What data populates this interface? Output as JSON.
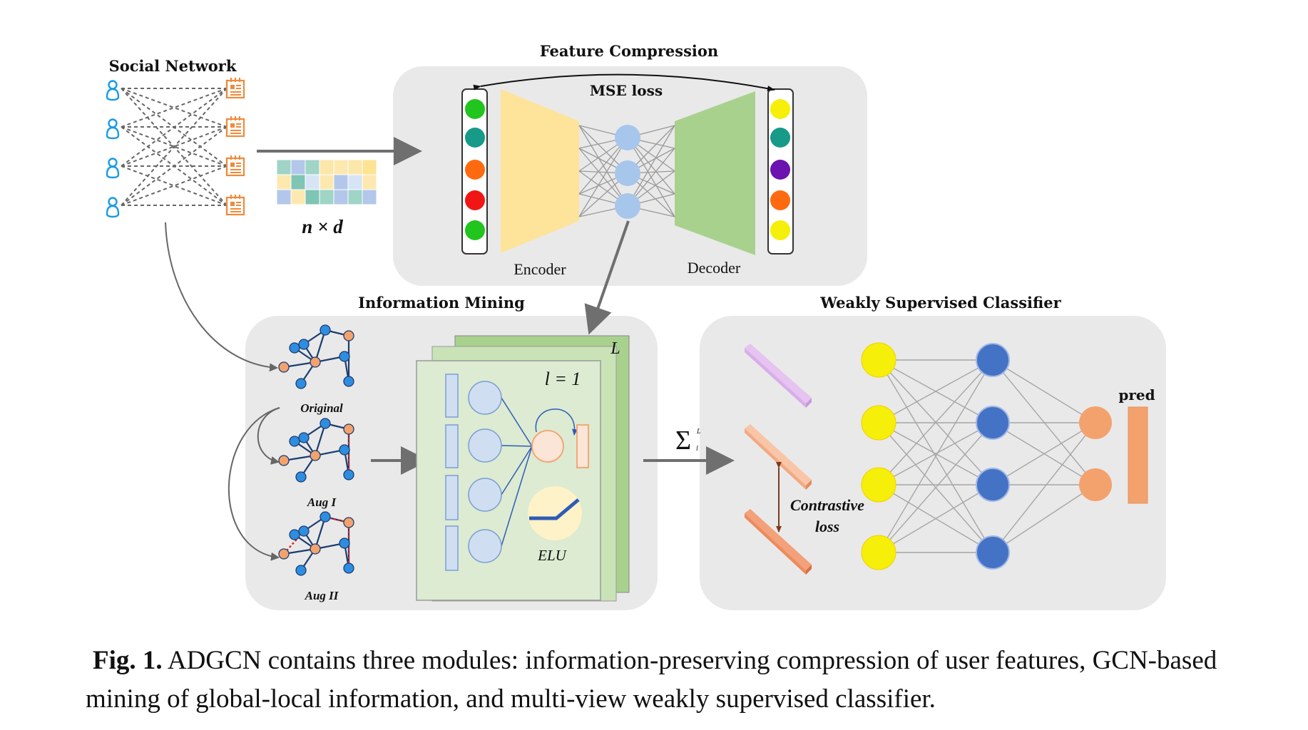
{
  "social_network": {
    "title": "Social Network",
    "matrix_label": "n × d"
  },
  "feature_compression": {
    "title": "Feature Compression",
    "loss_label": "MSE loss",
    "encoder_label": "Encoder",
    "decoder_label": "Decoder",
    "input_node_colors": [
      "#22c41e",
      "#179a87",
      "#ff6a10",
      "#f01616",
      "#22c41e"
    ],
    "output_node_colors": [
      "#f5ef0a",
      "#179a87",
      "#6b12b0",
      "#ff6a10",
      "#f5ef0a"
    ],
    "encoder_color": "#fde49a",
    "decoder_color": "#a9d18e",
    "latent_color": "#a7c6ec"
  },
  "information_mining": {
    "title": "Information Mining",
    "layer_top_label": "L",
    "layer_label": "l = 1",
    "activation_label": "ELU",
    "views": [
      "Original",
      "Aug I",
      "Aug II"
    ]
  },
  "aggregation_symbol": "Σ",
  "aggregation_sup": "L",
  "aggregation_sub": "l",
  "classifier": {
    "title": "Weakly Supervised Classifier",
    "loss_label_line1": "Contrastive",
    "loss_label_line2": "loss",
    "pred_label": "pred",
    "input_color": "#f5ef0a",
    "hidden_color": "#4472c4",
    "output_color": "#f4a26d"
  },
  "caption": {
    "label": "Fig. 1.",
    "text": " ADGCN contains three modules: information-preserving compression of user features, GCN-based mining of global-local information, and multi-view weakly supervised classifier."
  }
}
